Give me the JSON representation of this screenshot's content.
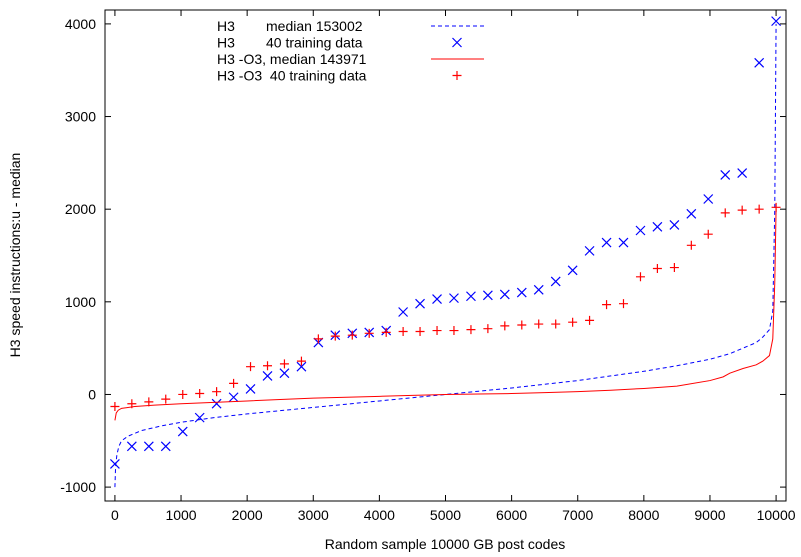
{
  "chart_data": {
    "type": "line",
    "xlabel": "Random sample 10000 GB post codes",
    "ylabel": "H3 speed instructions:u - median",
    "xlim": [
      -150,
      10150
    ],
    "ylim": [
      -1150,
      4150
    ],
    "xticks": [
      0,
      1000,
      2000,
      3000,
      4000,
      5000,
      6000,
      7000,
      8000,
      9000,
      10000
    ],
    "yticks": [
      -1000,
      0,
      1000,
      2000,
      3000,
      4000
    ],
    "grid": false,
    "legend_position": "top-left",
    "series": [
      {
        "name": "H3        median 153002",
        "style": "dashed-line",
        "color": "#0000ff",
        "x": [
          0,
          10,
          30,
          60,
          100,
          200,
          400,
          700,
          1000,
          1500,
          2000,
          2500,
          3000,
          3500,
          4000,
          4500,
          5000,
          5500,
          6000,
          6500,
          7000,
          7500,
          8000,
          8500,
          9000,
          9300,
          9500,
          9700,
          9800,
          9900,
          9950,
          9980,
          10000
        ],
        "y": [
          -1000,
          -780,
          -650,
          -560,
          -500,
          -450,
          -390,
          -340,
          -300,
          -250,
          -210,
          -175,
          -140,
          -105,
          -70,
          -35,
          0,
          35,
          70,
          110,
          150,
          200,
          250,
          310,
          380,
          440,
          500,
          560,
          620,
          700,
          900,
          2000,
          4000
        ]
      },
      {
        "name": "H3        40 training data",
        "style": "cross",
        "color": "#0000ff",
        "x": [
          0,
          256,
          513,
          769,
          1026,
          1282,
          1538,
          1795,
          2051,
          2308,
          2564,
          2821,
          3077,
          3333,
          3590,
          3846,
          4103,
          4359,
          4615,
          4872,
          5128,
          5385,
          5641,
          5897,
          6154,
          6410,
          6667,
          6923,
          7179,
          7436,
          7692,
          7949,
          8205,
          8462,
          8718,
          8974,
          9231,
          9487,
          9744,
          10000
        ],
        "y": [
          -750,
          -560,
          -560,
          -560,
          -400,
          -250,
          -100,
          -30,
          60,
          200,
          230,
          300,
          560,
          640,
          660,
          670,
          690,
          890,
          980,
          1030,
          1040,
          1060,
          1070,
          1080,
          1100,
          1130,
          1220,
          1340,
          1550,
          1640,
          1640,
          1770,
          1810,
          1830,
          1950,
          2110,
          2370,
          2390,
          3580,
          4030
        ]
      },
      {
        "name": "H3 -O3, median 143971",
        "style": "solid-line",
        "color": "#ff0000",
        "x": [
          0,
          20,
          50,
          100,
          300,
          600,
          1000,
          1500,
          2000,
          2500,
          3000,
          3500,
          4000,
          4500,
          5000,
          5500,
          6000,
          6500,
          7000,
          7500,
          8000,
          8500,
          9000,
          9200,
          9300,
          9500,
          9700,
          9800,
          9900,
          9950,
          9980,
          10000
        ],
        "y": [
          -280,
          -200,
          -170,
          -150,
          -130,
          -115,
          -100,
          -85,
          -70,
          -55,
          -40,
          -30,
          -20,
          -10,
          0,
          5,
          10,
          20,
          30,
          45,
          65,
          90,
          150,
          190,
          230,
          280,
          320,
          360,
          420,
          600,
          1200,
          2000
        ]
      },
      {
        "name": "H3 -O3  40 training data",
        "style": "plus",
        "color": "#ff0000",
        "x": [
          0,
          256,
          513,
          769,
          1026,
          1282,
          1538,
          1795,
          2051,
          2308,
          2564,
          2821,
          3077,
          3333,
          3590,
          3846,
          4103,
          4359,
          4615,
          4872,
          5128,
          5385,
          5641,
          5897,
          6154,
          6410,
          6667,
          6923,
          7179,
          7436,
          7692,
          7949,
          8205,
          8462,
          8718,
          8974,
          9231,
          9487,
          9744,
          10000
        ],
        "y": [
          -130,
          -100,
          -80,
          -50,
          0,
          10,
          30,
          120,
          300,
          310,
          330,
          360,
          600,
          630,
          640,
          660,
          670,
          680,
          680,
          690,
          690,
          700,
          710,
          740,
          750,
          760,
          760,
          780,
          800,
          970,
          980,
          1270,
          1360,
          1370,
          1610,
          1730,
          1960,
          1990,
          2000,
          2020
        ]
      }
    ]
  }
}
